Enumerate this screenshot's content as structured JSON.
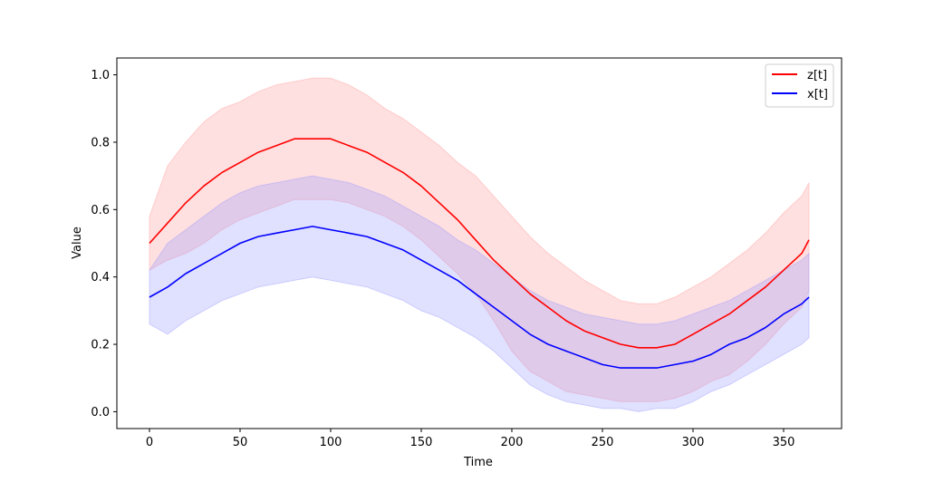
{
  "chart_data": {
    "type": "line",
    "title": "",
    "xlabel": "Time",
    "ylabel": "Value",
    "xlim": [
      -18,
      382
    ],
    "ylim": [
      -0.05,
      1.05
    ],
    "xticks": [
      "0",
      "50",
      "100",
      "150",
      "200",
      "250",
      "300",
      "350"
    ],
    "yticks": [
      "0.0",
      "0.2",
      "0.4",
      "0.6",
      "0.8",
      "1.0"
    ],
    "grid": false,
    "legend_position": "top-right",
    "series": [
      {
        "name": "z[t]",
        "color": "#ff0000",
        "band_color": "#ff9999",
        "x": [
          0,
          10,
          20,
          30,
          40,
          50,
          60,
          70,
          80,
          90,
          100,
          110,
          120,
          130,
          140,
          150,
          160,
          170,
          180,
          190,
          200,
          210,
          220,
          230,
          240,
          250,
          260,
          270,
          280,
          290,
          300,
          310,
          320,
          330,
          340,
          350,
          360,
          364
        ],
        "mean": [
          0.5,
          0.56,
          0.62,
          0.67,
          0.71,
          0.74,
          0.77,
          0.79,
          0.81,
          0.81,
          0.81,
          0.79,
          0.77,
          0.74,
          0.71,
          0.67,
          0.62,
          0.57,
          0.51,
          0.45,
          0.4,
          0.35,
          0.31,
          0.27,
          0.24,
          0.22,
          0.2,
          0.19,
          0.19,
          0.2,
          0.23,
          0.26,
          0.29,
          0.33,
          0.37,
          0.42,
          0.47,
          0.51
        ],
        "upper": [
          0.58,
          0.73,
          0.8,
          0.86,
          0.9,
          0.92,
          0.95,
          0.97,
          0.98,
          0.99,
          0.99,
          0.97,
          0.94,
          0.9,
          0.87,
          0.83,
          0.79,
          0.74,
          0.7,
          0.64,
          0.58,
          0.52,
          0.47,
          0.43,
          0.39,
          0.36,
          0.33,
          0.32,
          0.32,
          0.34,
          0.37,
          0.4,
          0.44,
          0.48,
          0.53,
          0.59,
          0.64,
          0.68
        ],
        "lower": [
          0.42,
          0.45,
          0.47,
          0.5,
          0.54,
          0.57,
          0.59,
          0.61,
          0.63,
          0.63,
          0.63,
          0.62,
          0.6,
          0.58,
          0.55,
          0.51,
          0.46,
          0.41,
          0.35,
          0.27,
          0.18,
          0.12,
          0.09,
          0.06,
          0.05,
          0.04,
          0.03,
          0.03,
          0.03,
          0.04,
          0.06,
          0.09,
          0.11,
          0.15,
          0.2,
          0.26,
          0.31,
          0.36
        ]
      },
      {
        "name": "x[t]",
        "color": "#0000ff",
        "band_color": "#9999ff",
        "x": [
          0,
          10,
          20,
          30,
          40,
          50,
          60,
          70,
          80,
          90,
          100,
          110,
          120,
          130,
          140,
          150,
          160,
          170,
          180,
          190,
          200,
          210,
          220,
          230,
          240,
          250,
          260,
          270,
          280,
          290,
          300,
          310,
          320,
          330,
          340,
          350,
          360,
          364
        ],
        "mean": [
          0.34,
          0.37,
          0.41,
          0.44,
          0.47,
          0.5,
          0.52,
          0.53,
          0.54,
          0.55,
          0.54,
          0.53,
          0.52,
          0.5,
          0.48,
          0.45,
          0.42,
          0.39,
          0.35,
          0.31,
          0.27,
          0.23,
          0.2,
          0.18,
          0.16,
          0.14,
          0.13,
          0.13,
          0.13,
          0.14,
          0.15,
          0.17,
          0.2,
          0.22,
          0.25,
          0.29,
          0.32,
          0.34
        ],
        "upper": [
          0.42,
          0.5,
          0.54,
          0.58,
          0.62,
          0.65,
          0.67,
          0.68,
          0.69,
          0.7,
          0.69,
          0.68,
          0.66,
          0.64,
          0.61,
          0.58,
          0.55,
          0.51,
          0.48,
          0.44,
          0.4,
          0.36,
          0.33,
          0.31,
          0.29,
          0.28,
          0.27,
          0.26,
          0.26,
          0.27,
          0.29,
          0.31,
          0.33,
          0.36,
          0.39,
          0.42,
          0.45,
          0.47
        ],
        "lower": [
          0.26,
          0.23,
          0.27,
          0.3,
          0.33,
          0.35,
          0.37,
          0.38,
          0.39,
          0.4,
          0.39,
          0.38,
          0.37,
          0.35,
          0.33,
          0.3,
          0.28,
          0.25,
          0.22,
          0.18,
          0.13,
          0.08,
          0.05,
          0.03,
          0.02,
          0.01,
          0.01,
          0.0,
          0.01,
          0.01,
          0.03,
          0.06,
          0.08,
          0.11,
          0.14,
          0.17,
          0.2,
          0.22
        ]
      }
    ]
  }
}
